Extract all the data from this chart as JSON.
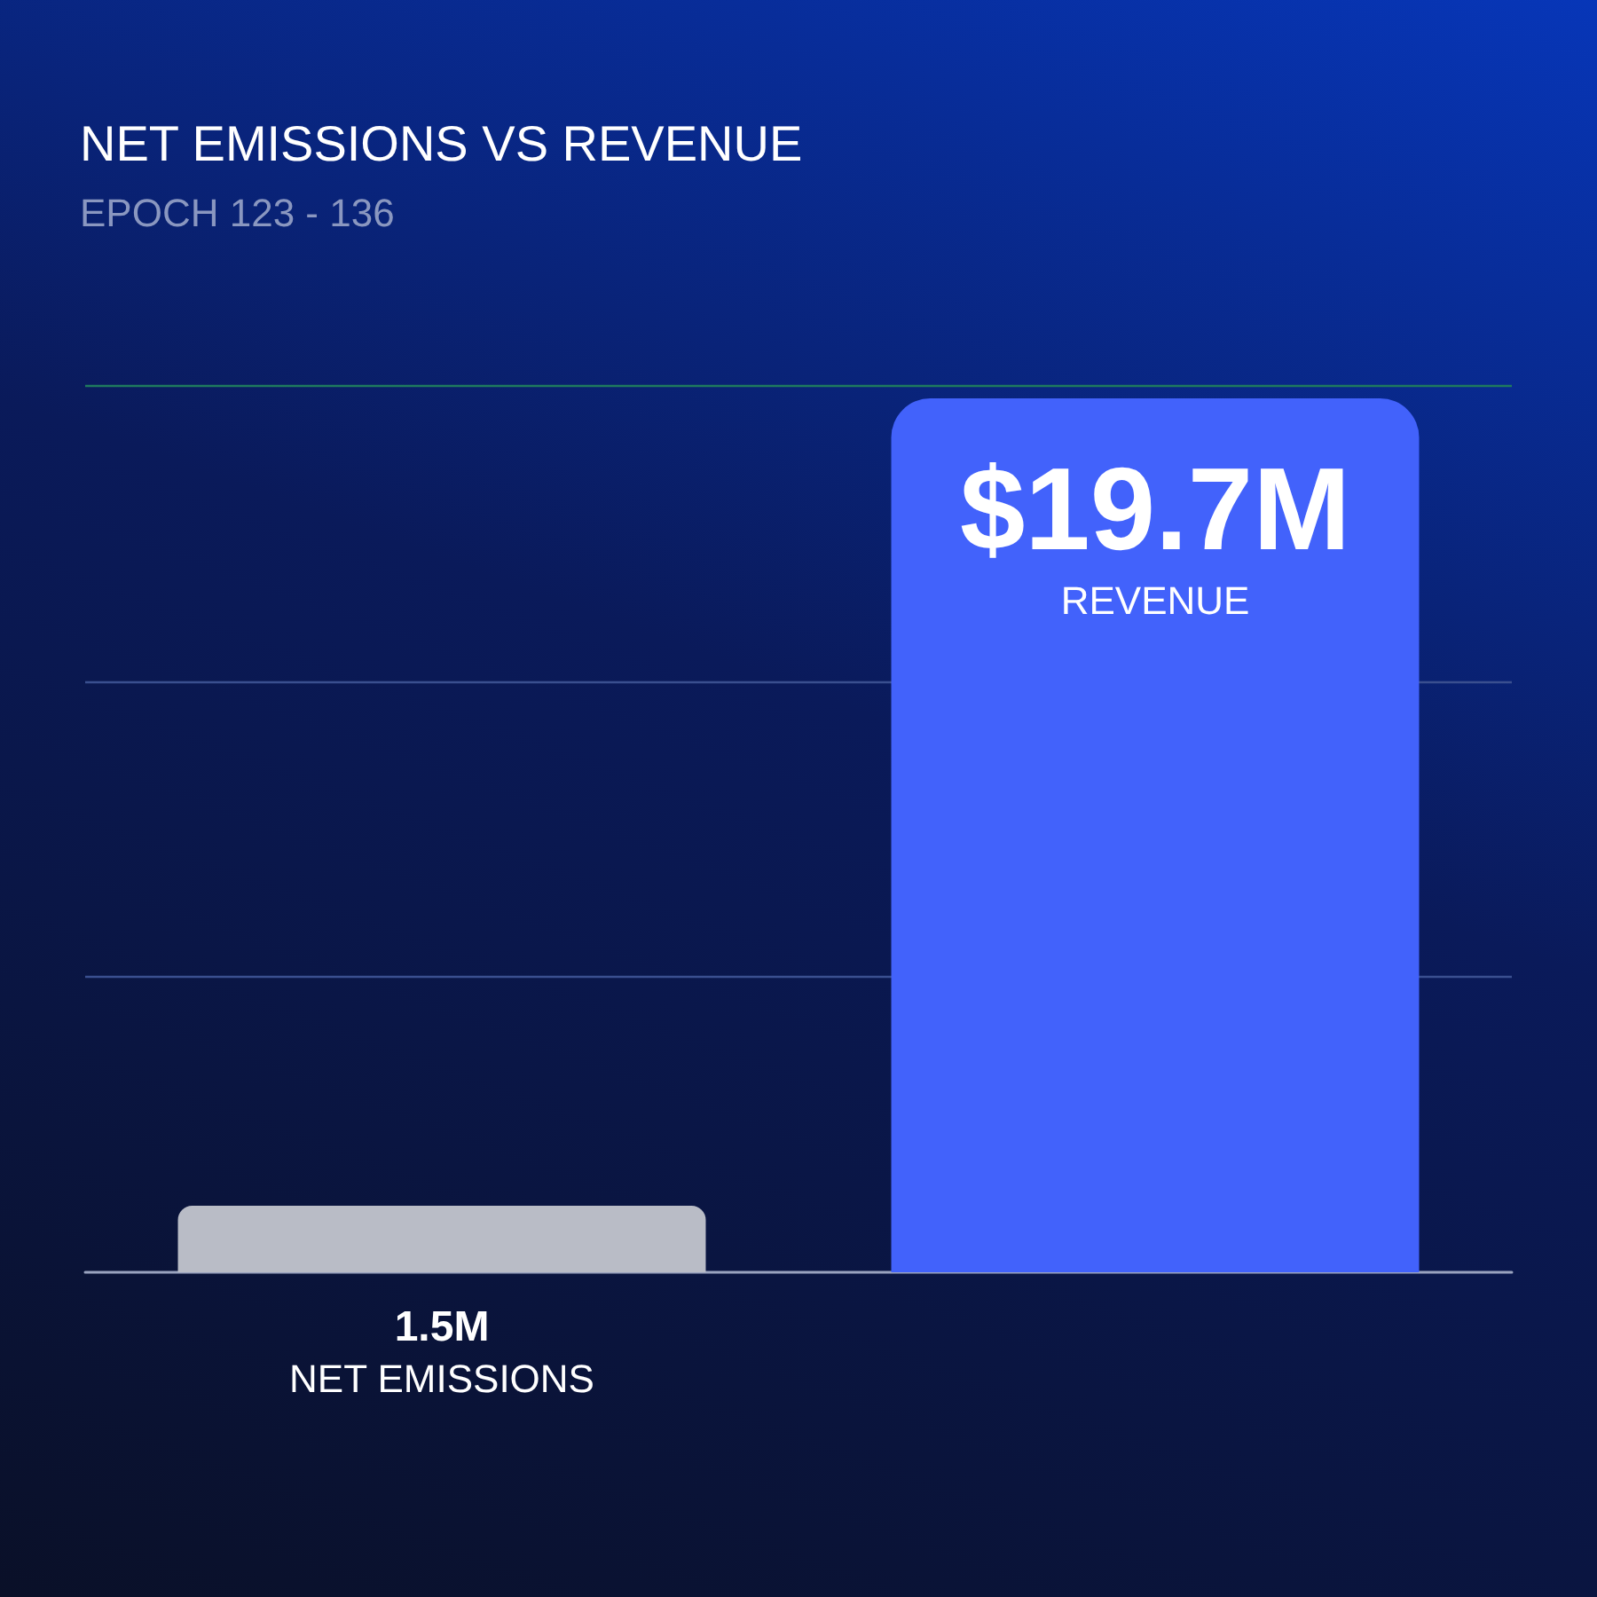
{
  "chart_data": {
    "type": "bar",
    "title": "NET EMISSIONS VS REVENUE",
    "subtitle": "EPOCH 123 - 136",
    "categories": [
      "NET EMISSIONS",
      "REVENUE"
    ],
    "values": [
      1.5,
      19.7
    ],
    "colors": [
      "#b9bcc6",
      "#4262fb"
    ],
    "value_labels": [
      "1.5M",
      "$19.7M"
    ],
    "ylim": [
      0,
      20
    ],
    "ref_lines": [
      {
        "axis": "y",
        "value": 6.67,
        "color": "#3a4f8f"
      },
      {
        "axis": "y",
        "value": 13.33,
        "color": "#3a4f8f"
      },
      {
        "axis": "y",
        "value": 20,
        "color": "#1f7a5e"
      }
    ]
  }
}
